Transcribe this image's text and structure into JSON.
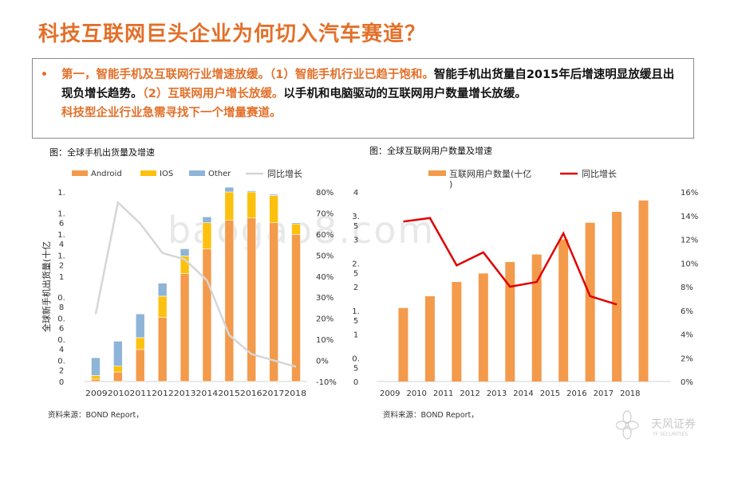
{
  "page": {
    "title": "科技互联网巨头企业为何切入汽车赛道？",
    "bullet": "•",
    "summary": {
      "p1": "第一，智能手机及互联网行业增速放缓。（1）智能手机行业已趋于饱和。",
      "p2": "智能手机出货量自2015年后增速明显放缓且出现负增长趋势。",
      "p3": "（2）互联网用户增长放缓。",
      "p4": "以手机和电脑驱动的互联网用户数量增长放缓。",
      "p5": "科技型企业行业急需寻找下一个增量赛道。"
    },
    "watermark": "baogao8.com",
    "logo": {
      "cn": "天风证券",
      "en": "TF SECURITIES"
    }
  },
  "colors": {
    "accent": "#e2702a",
    "bar_orange": "#f39a4b",
    "bar_yellow": "#fcc10f",
    "bar_blue": "#8eb4d8",
    "line_gray": "#d6d6d6",
    "line_red": "#e00000"
  },
  "chart_data": [
    {
      "type": "bar",
      "stacked": true,
      "caption": "图：全球手机出货量及增速",
      "source": "资料来源：BOND Report，",
      "categories": [
        "2009",
        "2010",
        "2011",
        "2012",
        "2013",
        "2014",
        "2015",
        "2016",
        "2017",
        "2018"
      ],
      "category_label": "2009201020112012201320142015201620172018",
      "series": [
        {
          "name": "Android",
          "values": [
            0.02,
            0.08,
            0.27,
            0.54,
            0.91,
            1.12,
            1.36,
            1.38,
            1.34,
            1.24
          ]
        },
        {
          "name": "IOS",
          "values": [
            0.03,
            0.05,
            0.1,
            0.18,
            0.15,
            0.22,
            0.24,
            0.22,
            0.23,
            0.09
          ]
        },
        {
          "name": "Other",
          "values": [
            0.15,
            0.21,
            0.2,
            0.11,
            0.06,
            0.05,
            0.04,
            0.01,
            0.01,
            0.01
          ]
        }
      ],
      "line_series": {
        "name": "同比增长",
        "values": [
          22,
          75,
          65,
          51,
          48,
          38,
          12,
          3,
          0,
          -3
        ]
      },
      "ylabel": "全球新手机出货量(十亿",
      "y_tick_labels": [
        "0",
        "0.\n2",
        "0.\n4",
        "0.\n6",
        "0.\n8",
        "1",
        "1.\n2",
        "1.\n4",
        "1.\n6",
        "1."
      ],
      "ylim": [
        0,
        1.6
      ],
      "y2_tick_labels": [
        "-10%",
        "0%",
        "10%",
        "20%",
        "30%",
        "40%",
        "50%",
        "60%",
        "70%",
        "80%"
      ],
      "y2lim": [
        -10,
        80
      ],
      "legend_position": "top"
    },
    {
      "type": "bar",
      "caption": "图：全球互联网用户数量及增速",
      "source": "资料来源：BOND Report，",
      "categories": [
        "2009",
        "2010",
        "2011",
        "2012",
        "2013",
        "2014",
        "2015",
        "2016",
        "2017",
        "2018"
      ],
      "series": [
        {
          "name": "互联网用户数量(十亿\n)",
          "values": [
            1.55,
            1.8,
            2.1,
            2.28,
            2.52,
            2.68,
            3.0,
            3.35,
            3.58,
            3.82
          ]
        }
      ],
      "line_series": {
        "name": "同比增长",
        "values": [
          13.5,
          13.8,
          9.8,
          10.9,
          8.0,
          8.4,
          12.5,
          7.2,
          6.5
        ]
      },
      "y_tick_labels": [
        "0",
        "0.\n5",
        "1",
        "1.\n5",
        "2",
        "2.\n5",
        "3",
        "3.\n5",
        "4"
      ],
      "ylim": [
        0,
        4
      ],
      "y2_tick_labels": [
        "0%",
        "2%",
        "4%",
        "6%",
        "8%",
        "10%",
        "12%",
        "14%",
        "16%"
      ],
      "y2lim": [
        0,
        16
      ],
      "legend_position": "top"
    }
  ]
}
